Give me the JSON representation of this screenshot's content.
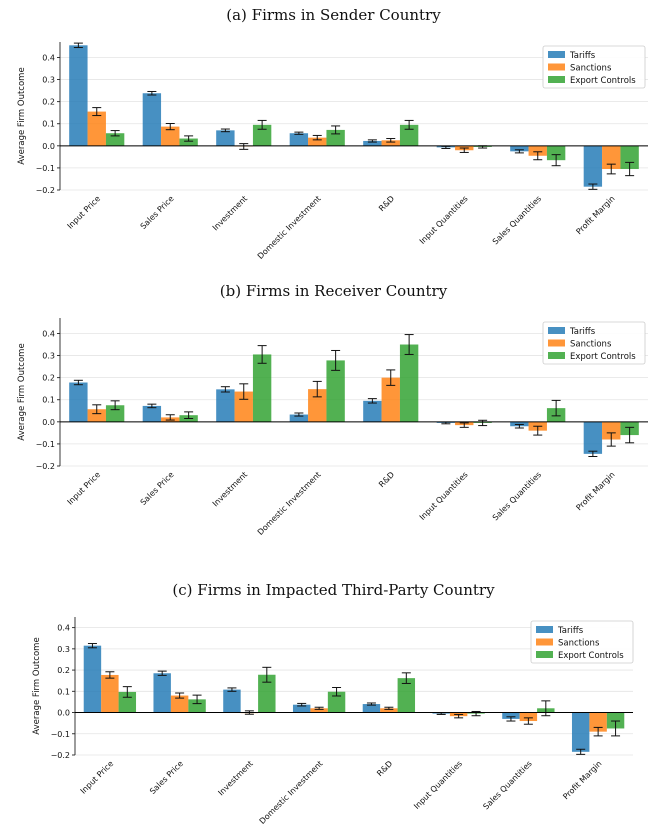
{
  "chart_data": [
    {
      "type": "bar",
      "title": "(a) Firms in Sender Country",
      "ylabel": "Average Firm Outcome",
      "ylim": [
        -0.2,
        0.47
      ],
      "yticks": [
        "0.4",
        "0.3",
        "0.2",
        "0.1",
        "0.0",
        "−0.1",
        "−0.2"
      ],
      "legend": "top-right",
      "categories": [
        "Input Price",
        "Sales Price",
        "Investment",
        "Domestic Investment",
        "R&D",
        "Input Quantities",
        "Sales Quantities",
        "Profit Margin"
      ],
      "series": [
        {
          "name": "Tariffs",
          "color": "#1f77b4",
          "values": [
            0.455,
            0.238,
            0.07,
            0.057,
            0.022,
            -0.007,
            -0.025,
            -0.185
          ],
          "errors": [
            0.01,
            0.008,
            0.006,
            0.005,
            0.005,
            0.005,
            0.007,
            0.012
          ]
        },
        {
          "name": "Sanctions",
          "color": "#ff7f0e",
          "values": [
            0.155,
            0.087,
            -0.003,
            0.037,
            0.025,
            -0.02,
            -0.045,
            -0.105
          ],
          "errors": [
            0.018,
            0.014,
            0.013,
            0.01,
            0.008,
            0.01,
            0.018,
            0.022
          ]
        },
        {
          "name": "Export Controls",
          "color": "#2ca02c",
          "values": [
            0.057,
            0.033,
            0.095,
            0.072,
            0.095,
            -0.005,
            -0.065,
            -0.105
          ],
          "errors": [
            0.012,
            0.012,
            0.02,
            0.018,
            0.02,
            0.005,
            0.025,
            0.03
          ]
        }
      ]
    },
    {
      "type": "bar",
      "title": "(b) Firms in Receiver Country",
      "ylabel": "Average Firm Outcome",
      "ylim": [
        -0.2,
        0.47
      ],
      "yticks": [
        "0.4",
        "0.3",
        "0.2",
        "0.1",
        "0.0",
        "−0.1",
        "−0.2"
      ],
      "legend": "top-right",
      "categories": [
        "Input Price",
        "Sales Price",
        "Investment",
        "Domestic Investment",
        "R&D",
        "Input Quantities",
        "Sales Quantities",
        "Profit Margin"
      ],
      "series": [
        {
          "name": "Tariffs",
          "color": "#1f77b4",
          "values": [
            0.178,
            0.072,
            0.147,
            0.033,
            0.095,
            -0.005,
            -0.02,
            -0.145
          ],
          "errors": [
            0.01,
            0.008,
            0.012,
            0.007,
            0.01,
            0.004,
            0.008,
            0.012
          ]
        },
        {
          "name": "Sanctions",
          "color": "#ff7f0e",
          "values": [
            0.057,
            0.02,
            0.137,
            0.148,
            0.2,
            -0.015,
            -0.04,
            -0.08
          ],
          "errors": [
            0.02,
            0.012,
            0.035,
            0.035,
            0.035,
            0.01,
            0.02,
            0.03
          ]
        },
        {
          "name": "Export Controls",
          "color": "#2ca02c",
          "values": [
            0.075,
            0.03,
            0.305,
            0.278,
            0.35,
            -0.005,
            0.062,
            -0.06
          ],
          "errors": [
            0.02,
            0.015,
            0.04,
            0.045,
            0.045,
            0.012,
            0.035,
            0.035
          ]
        }
      ]
    },
    {
      "type": "bar",
      "title": "(c) Firms in Impacted Third-Party Country",
      "ylabel": "Average Firm Outcome",
      "ylim": [
        -0.2,
        0.45
      ],
      "yticks": [
        "0.4",
        "0.3",
        "0.2",
        "0.1",
        "0.0",
        "−0.1",
        "−0.2"
      ],
      "legend": "top-right",
      "categories": [
        "Input Price",
        "Sales Price",
        "Investment",
        "Domestic Investment",
        "R&D",
        "Input Quantities",
        "Sales Quantities",
        "Profit Margin"
      ],
      "series": [
        {
          "name": "Tariffs",
          "color": "#1f77b4",
          "values": [
            0.315,
            0.185,
            0.108,
            0.037,
            0.04,
            -0.005,
            -0.03,
            -0.185
          ],
          "errors": [
            0.01,
            0.01,
            0.008,
            0.006,
            0.005,
            0.004,
            0.01,
            0.012
          ]
        },
        {
          "name": "Sanctions",
          "color": "#ff7f0e",
          "values": [
            0.177,
            0.08,
            0.0,
            0.02,
            0.02,
            -0.017,
            -0.04,
            -0.09
          ],
          "errors": [
            0.015,
            0.012,
            0.008,
            0.005,
            0.005,
            0.008,
            0.015,
            0.02
          ]
        },
        {
          "name": "Export Controls",
          "color": "#2ca02c",
          "values": [
            0.097,
            0.062,
            0.178,
            0.098,
            0.162,
            -0.005,
            0.02,
            -0.075
          ],
          "errors": [
            0.025,
            0.02,
            0.035,
            0.02,
            0.025,
            0.01,
            0.035,
            0.035
          ]
        }
      ]
    }
  ]
}
